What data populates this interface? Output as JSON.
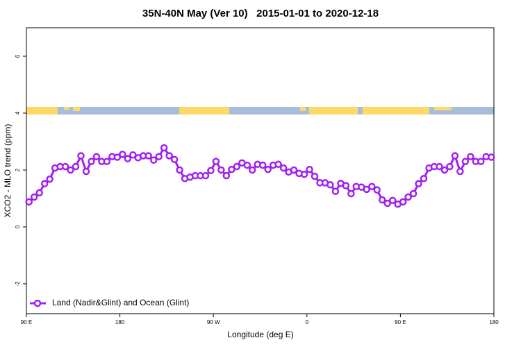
{
  "chart_data": {
    "type": "line",
    "title": "35N-40N May (Ver 10)   2015-01-01 to 2020-12-18",
    "x_label": "Longitude (deg E)",
    "y_label": "XCO2 - MLO trend (ppm)",
    "xlim": [
      90,
      540
    ],
    "xticks": [
      {
        "value": 90,
        "label": "90 E"
      },
      {
        "value": 180,
        "label": "180"
      },
      {
        "value": 270,
        "label": "90 W"
      },
      {
        "value": 360,
        "label": "0"
      },
      {
        "value": 450,
        "label": "90 E"
      },
      {
        "value": 540,
        "label": "180"
      }
    ],
    "ylim": [
      -3.05,
      7
    ],
    "yticks": [
      -2,
      0,
      2,
      4,
      6
    ],
    "legend": "bottom-left",
    "x": [
      92.5,
      97.5,
      102.5,
      107.5,
      112.5,
      117.5,
      122.5,
      127.5,
      132.5,
      137.5,
      142.5,
      147.5,
      152.5,
      157.5,
      162.5,
      167.5,
      172.5,
      177.5,
      182.5,
      187.5,
      192.5,
      197.5,
      202.5,
      207.5,
      212.5,
      217.5,
      222.5,
      227.5,
      232.5,
      237.5,
      242.5,
      247.5,
      252.5,
      257.5,
      262.5,
      267.5,
      272.5,
      277.5,
      282.5,
      287.5,
      292.5,
      297.5,
      302.5,
      307.5,
      312.5,
      317.5,
      322.5,
      327.5,
      332.5,
      337.5,
      342.5,
      347.5,
      352.5,
      357.5,
      362.5,
      367.5,
      372.5,
      377.5,
      382.5,
      387.5,
      392.5,
      397.5,
      402.5,
      407.5,
      412.5,
      417.5,
      422.5,
      427.5,
      432.5,
      437.5,
      442.5,
      447.5,
      452.5,
      457.5,
      462.5,
      467.5,
      472.5,
      477.5,
      482.5,
      487.5,
      492.5,
      497.5,
      502.5,
      507.5,
      512.5,
      517.5,
      522.5,
      527.5,
      532.5,
      537.5
    ],
    "series": [
      {
        "name": "Land (Nadir&Glint) and Ocean (Glint)",
        "color": "#a020f0",
        "values": [
          0.88,
          1.05,
          1.2,
          1.52,
          1.68,
          2.07,
          2.12,
          2.12,
          2.0,
          2.12,
          2.5,
          1.95,
          2.3,
          2.47,
          2.3,
          2.3,
          2.47,
          2.45,
          2.55,
          2.4,
          2.53,
          2.43,
          2.5,
          2.5,
          2.35,
          2.47,
          2.78,
          2.5,
          2.37,
          2.0,
          1.7,
          1.75,
          1.8,
          1.8,
          1.8,
          1.98,
          2.3,
          2.0,
          1.8,
          2.02,
          2.12,
          2.25,
          2.17,
          2.0,
          2.2,
          2.17,
          2.02,
          2.17,
          2.2,
          2.07,
          1.93,
          2.0,
          1.88,
          1.85,
          2.02,
          1.78,
          1.55,
          1.55,
          1.48,
          1.25,
          1.53,
          1.45,
          1.17,
          1.42,
          1.4,
          1.32,
          1.42,
          1.3,
          0.95,
          0.83,
          0.93,
          0.8,
          0.88,
          1.05,
          1.17,
          1.52,
          1.7,
          2.07,
          2.12,
          2.12,
          2.0,
          2.12,
          2.5,
          1.95,
          2.3,
          2.47,
          2.3,
          2.3,
          2.47,
          2.45
        ]
      }
    ]
  }
}
